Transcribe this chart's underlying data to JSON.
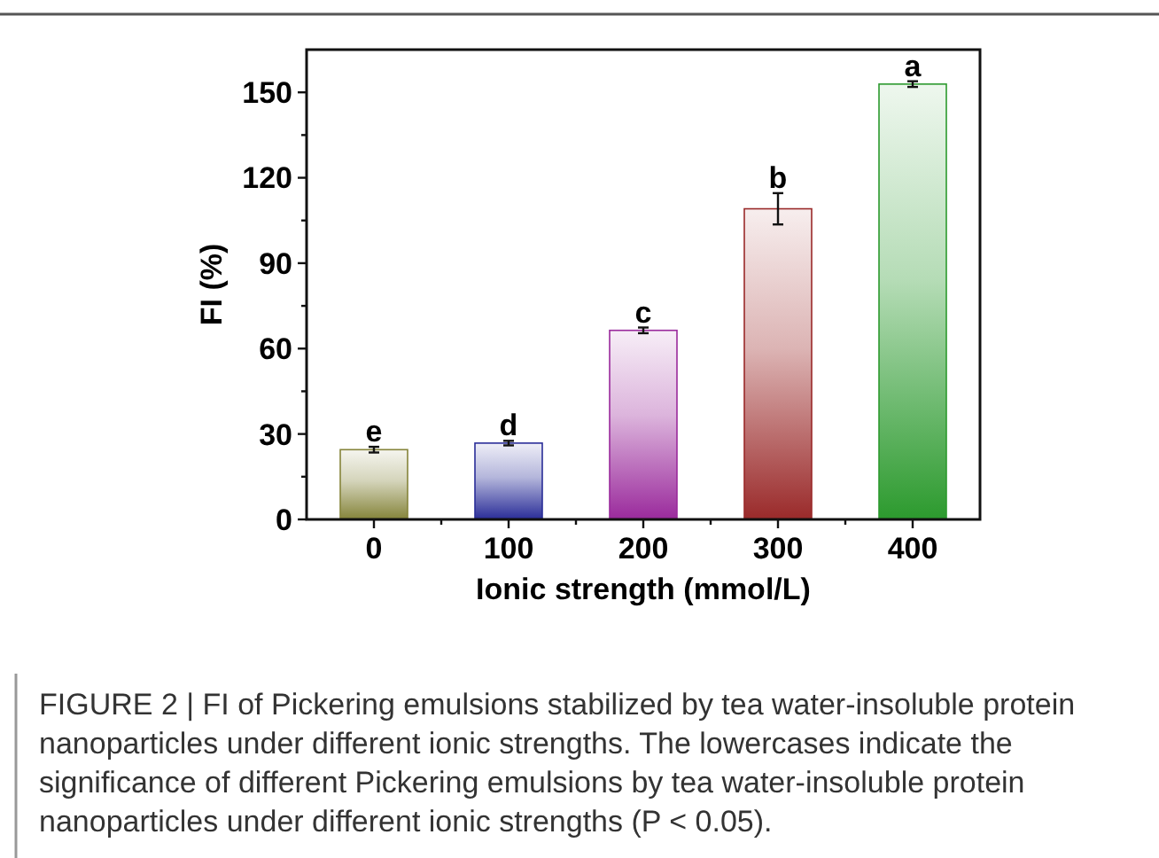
{
  "chart_data": {
    "type": "bar",
    "xlabel": "Ionic strength (mmol/L)",
    "ylabel": "FI (%)",
    "categories": [
      "0",
      "100",
      "200",
      "300",
      "400"
    ],
    "values": [
      24.5,
      26.8,
      66.4,
      109.1,
      152.9
    ],
    "errors": [
      1,
      0.8,
      1,
      5.5,
      1
    ],
    "colors": [
      "#85843a",
      "#2a2d98",
      "#9a2a9c",
      "#9a2a2a",
      "#2c9a2e"
    ],
    "ylim": [
      0,
      165
    ],
    "yticks": [
      0,
      {
        "value": 15,
        "label": null
      },
      30,
      {
        "value": 45,
        "label": null
      },
      60,
      {
        "value": 75,
        "label": null
      },
      90,
      {
        "value": 105,
        "label": null
      },
      120,
      {
        "value": 135,
        "label": null
      },
      150
    ],
    "grid": false,
    "annotations": [
      {
        "text": "e",
        "x": "0",
        "y": 25.5
      },
      {
        "text": "d",
        "x": "100",
        "y": 27.8
      },
      {
        "text": "c",
        "x": "200",
        "y": 67.4
      },
      {
        "text": "b",
        "x": "300",
        "y": 114.7
      },
      {
        "text": "a",
        "x": "400",
        "y": 153.9
      },
      "FIGURE 2 | FI of Pickering emulsions stabilized by tea water-insoluble protein nanoparticles under different ionic strengths. The lowercases indicate the significance of different Pickering emulsions by tea water-insoluble protein nanoparticles under different ionic strengths (P < 0.05)."
    ]
  }
}
